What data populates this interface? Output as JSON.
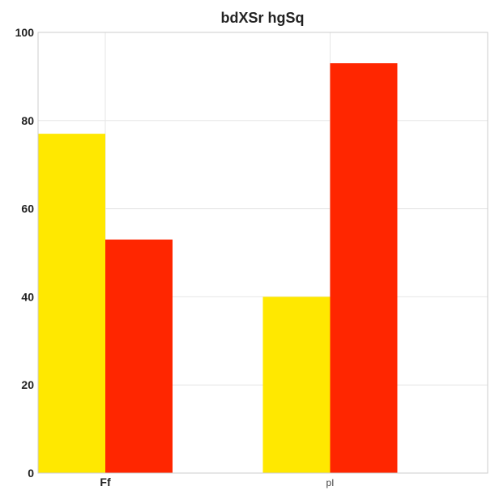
{
  "chart_data": {
    "type": "bar",
    "title": "bdXSr hgSq",
    "xlabel": "",
    "ylabel": "",
    "categories": [
      "Ff",
      "pI"
    ],
    "series": [
      {
        "values": [
          77,
          40
        ],
        "color": "#FFE800"
      },
      {
        "values": [
          53,
          93
        ],
        "color": "#FF2600"
      }
    ],
    "ylim": [
      0,
      100
    ],
    "yticks": [
      "0",
      "20",
      "40",
      "60",
      "80",
      "100"
    ],
    "grid": true,
    "legend": "none"
  }
}
